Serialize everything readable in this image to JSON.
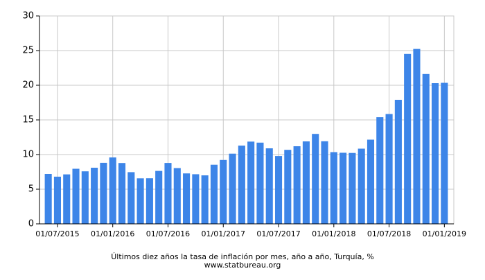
{
  "chart_data": {
    "type": "bar",
    "title": "Últimos diez años la tasa de inflación por mes, año a año, Turquía, %",
    "subtitle": "www.statbureau.org",
    "categories": [
      null,
      "01/07/2015",
      null,
      null,
      null,
      null,
      null,
      "01/01/2016",
      null,
      null,
      null,
      null,
      null,
      "01/07/2016",
      null,
      null,
      null,
      null,
      null,
      "01/01/2017",
      null,
      null,
      null,
      null,
      null,
      "01/07/2017",
      null,
      null,
      null,
      null,
      null,
      "01/01/2018",
      null,
      null,
      null,
      null,
      null,
      "01/07/2018",
      null,
      null,
      null,
      null,
      null,
      "01/01/2019"
    ],
    "values": [
      7.2,
      6.81,
      7.14,
      7.95,
      7.58,
      8.1,
      8.81,
      9.58,
      8.78,
      7.46,
      6.57,
      6.58,
      7.64,
      8.79,
      8.05,
      7.28,
      7.16,
      7.0,
      8.53,
      9.22,
      10.13,
      11.29,
      11.87,
      11.72,
      10.9,
      9.79,
      10.68,
      11.2,
      11.9,
      12.98,
      11.92,
      10.35,
      10.26,
      10.23,
      10.85,
      12.15,
      15.39,
      15.85,
      17.9,
      24.52,
      25.24,
      21.62,
      20.3,
      20.35
    ],
    "color": "#3d85e8",
    "ylim": [
      0,
      30
    ],
    "yticks": [
      0,
      5,
      10,
      15,
      20,
      25,
      30
    ],
    "grid": true
  }
}
